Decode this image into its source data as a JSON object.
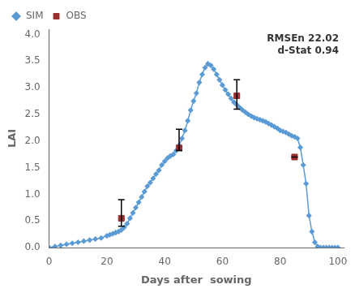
{
  "chart_data": {
    "type": "line",
    "x_label": "Days after  sowing",
    "y_label": "LAI",
    "annotation": "RMSEn 22.02\nd-Stat 0.94",
    "xlim": [
      0,
      102
    ],
    "ylim": [
      0.0,
      4.1
    ],
    "xticks": [
      0,
      20,
      40,
      60,
      80,
      100
    ],
    "yticks": [
      {
        "value": 0.0,
        "label": "0.0"
      },
      0.5,
      {
        "value": 1.0,
        "label": "1.0"
      },
      1.5,
      {
        "value": 2.0,
        "label": "2.0"
      },
      2.5,
      {
        "value": 3.0,
        "label": "3.0"
      },
      3.5,
      {
        "value": 4.0,
        "label": "4.0"
      }
    ],
    "grid": false,
    "legend": "upper left",
    "series": [
      {
        "name": "SIM",
        "type": "line",
        "marker": "diamond",
        "color": "#5b9bd5",
        "x": [
          0,
          2,
          4,
          6,
          8,
          10,
          12,
          14,
          16,
          18,
          20,
          21,
          22,
          23,
          24,
          25,
          26,
          27,
          28,
          29,
          30,
          31,
          32,
          33,
          34,
          35,
          36,
          37,
          38,
          39,
          40,
          41,
          42,
          43,
          44,
          45,
          46,
          47,
          48,
          49,
          50,
          51,
          52,
          53,
          54,
          55,
          56,
          57,
          58,
          59,
          60,
          61,
          62,
          63,
          64,
          65,
          66,
          67,
          68,
          69,
          70,
          71,
          72,
          73,
          74,
          75,
          76,
          77,
          78,
          79,
          80,
          81,
          82,
          83,
          84,
          85,
          86,
          87,
          88,
          89,
          90,
          91,
          92,
          93,
          94,
          95,
          96,
          97,
          98,
          99,
          100
        ],
        "values": [
          0.0,
          0.02,
          0.04,
          0.06,
          0.08,
          0.1,
          0.12,
          0.14,
          0.16,
          0.18,
          0.22,
          0.24,
          0.26,
          0.28,
          0.3,
          0.33,
          0.38,
          0.45,
          0.55,
          0.65,
          0.75,
          0.85,
          0.95,
          1.05,
          1.15,
          1.22,
          1.3,
          1.38,
          1.45,
          1.55,
          1.62,
          1.68,
          1.72,
          1.75,
          1.82,
          1.92,
          2.05,
          2.2,
          2.38,
          2.58,
          2.75,
          2.9,
          3.1,
          3.25,
          3.38,
          3.45,
          3.42,
          3.35,
          3.25,
          3.15,
          3.05,
          2.96,
          2.88,
          2.8,
          2.73,
          2.68,
          2.63,
          2.58,
          2.54,
          2.5,
          2.47,
          2.44,
          2.42,
          2.4,
          2.38,
          2.36,
          2.33,
          2.3,
          2.27,
          2.24,
          2.2,
          2.18,
          2.16,
          2.13,
          2.1,
          2.08,
          2.05,
          1.88,
          1.55,
          1.2,
          0.6,
          0.3,
          0.1,
          0.02,
          0.0,
          0.0,
          0.0,
          0.0,
          0.0,
          0.0,
          0.0
        ]
      },
      {
        "name": "OBS",
        "type": "scatter",
        "marker": "square",
        "color": "#9B3030",
        "x": [
          25,
          45,
          65,
          85
        ],
        "values": [
          0.55,
          1.87,
          2.85,
          1.7
        ],
        "yerr_upper": [
          0.35,
          0.35,
          0.3,
          0.0
        ],
        "yerr_lower": [
          0.15,
          0.05,
          0.25,
          0.0
        ]
      }
    ]
  }
}
